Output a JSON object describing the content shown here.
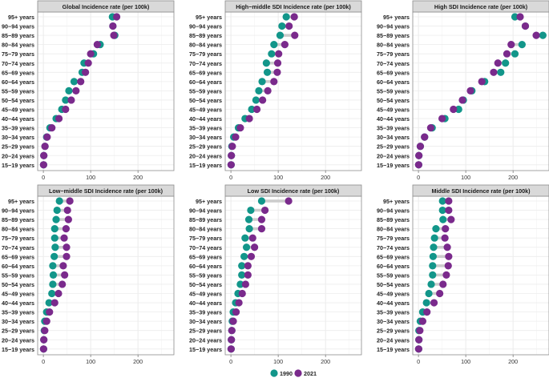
{
  "chart_data": {
    "type": "dumbbell",
    "age_groups": [
      "95+ years",
      "90−94 years",
      "85−89 years",
      "80−84 years",
      "75−79 years",
      "70−74 years",
      "65−69 years",
      "60−64 years",
      "55−59 years",
      "50−54 years",
      "45−49 years",
      "40−44 years",
      "35−39 years",
      "30−34 years",
      "25−29 years",
      "20−24 years",
      "15−19 years"
    ],
    "x_ticks": [
      0,
      100,
      200
    ],
    "xlim": [
      -12,
      276
    ],
    "legend": {
      "position": "bottom",
      "items": [
        {
          "label": "1990",
          "color": "#12968A"
        },
        {
          "label": "2021",
          "color": "#7A2A8C"
        }
      ]
    },
    "segment_color": "#CCCCCC",
    "panels": [
      {
        "title": "Global Incidence rate (per 100k)",
        "v1990": [
          146,
          147,
          151,
          120,
          106,
          86,
          82,
          65,
          54,
          47,
          39,
          27,
          14,
          7,
          3.5,
          1,
          0.5
        ],
        "v2021": [
          155,
          147,
          149,
          114,
          100,
          95,
          89,
          79,
          69,
          59,
          47,
          33,
          18,
          8,
          3.5,
          1,
          0.5
        ]
      },
      {
        "title": "High−middle SDI Incidence rate (per 100k)",
        "v1990": [
          117,
          108,
          104,
          91,
          86,
          75,
          77,
          66,
          59,
          53,
          44,
          30,
          16,
          6,
          2,
          1,
          0.5
        ],
        "v2021": [
          134,
          123,
          135,
          114,
          101,
          99,
          98,
          91,
          78,
          67,
          55,
          39,
          20,
          10,
          3,
          1,
          0.5
        ]
      },
      {
        "title": "High SDI Incidence rate (per 100k)",
        "v1990": [
          204,
          226,
          263,
          219,
          204,
          184,
          174,
          140,
          113,
          95,
          85,
          56,
          29,
          13,
          4,
          1,
          0.5
        ],
        "v2021": [
          215,
          226,
          249,
          196,
          187,
          168,
          159,
          134,
          110,
          93,
          74,
          50,
          26,
          13,
          4,
          1,
          0.5
        ]
      },
      {
        "title": "Low−middle SDI Incidence rate (per 100k)",
        "v1990": [
          34,
          29,
          27,
          24,
          24,
          25,
          23,
          20,
          21,
          20,
          18,
          12,
          7,
          3,
          2,
          1,
          0.5
        ],
        "v2021": [
          56,
          51,
          53,
          48,
          44,
          49,
          49,
          42,
          45,
          40,
          32,
          24,
          13,
          7,
          3,
          1,
          0.5
        ]
      },
      {
        "title": "Low SDI Incidence rate (per 100k)",
        "v1990": [
          65,
          42,
          38,
          39,
          30,
          33,
          28,
          23,
          23,
          20,
          15,
          10,
          5,
          3,
          2,
          1,
          0.5
        ],
        "v2021": [
          122,
          72,
          65,
          65,
          46,
          50,
          43,
          36,
          36,
          31,
          24,
          17,
          11,
          5,
          2,
          1,
          0.5
        ]
      },
      {
        "title": "Middle SDI Incidence rate (per 100k)",
        "v1990": [
          51,
          51,
          52,
          37,
          34,
          32,
          31,
          30,
          30,
          27,
          22,
          17,
          9,
          4,
          1,
          1,
          0.5
        ],
        "v2021": [
          64,
          64,
          69,
          57,
          56,
          61,
          64,
          63,
          59,
          52,
          45,
          33,
          18,
          9,
          3,
          1,
          0.5
        ]
      }
    ]
  }
}
